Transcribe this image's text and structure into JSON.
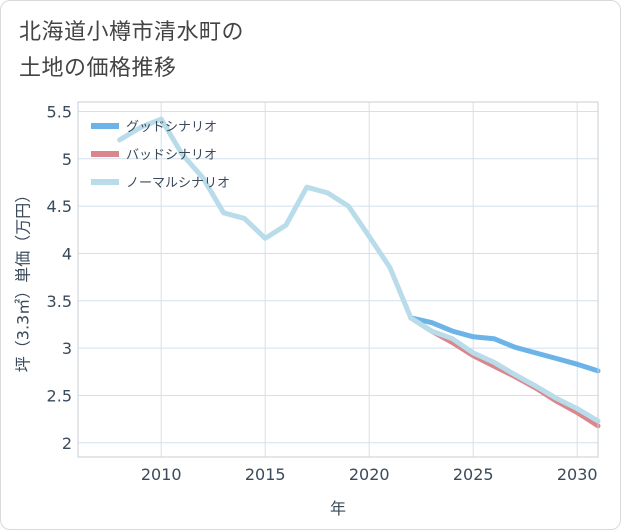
{
  "title": "北海道小樽市清水町の\n土地の価格推移",
  "chart_data": {
    "type": "line",
    "xlabel": "年",
    "ylabel": "坪（3.3㎡）単価（万円）",
    "xlim": [
      2006,
      2031
    ],
    "ylim": [
      1.85,
      5.6
    ],
    "xticks": [
      2010,
      2015,
      2020,
      2025,
      2030
    ],
    "xtick_labels": [
      "2010",
      "2015",
      "2020",
      "2025",
      "2030"
    ],
    "yticks": [
      2,
      2.5,
      3,
      3.5,
      4,
      4.5,
      5,
      5.5
    ],
    "ytick_labels": [
      "2",
      "2.5",
      "3",
      "3.5",
      "4",
      "4.5",
      "5",
      "5.5"
    ],
    "grid": true,
    "legend_position": "top-left",
    "series": [
      {
        "name": "グッドシナリオ",
        "color": "#6cb3e8",
        "x": [
          2022,
          2023,
          2024,
          2025,
          2026,
          2027,
          2028,
          2029,
          2030,
          2031
        ],
        "y": [
          3.32,
          3.27,
          3.18,
          3.12,
          3.1,
          3.01,
          2.95,
          2.89,
          2.83,
          2.76
        ]
      },
      {
        "name": "バッドシナリオ",
        "color": "#d9868c",
        "x": [
          2022,
          2023,
          2024,
          2025,
          2026,
          2027,
          2028,
          2029,
          2030,
          2031
        ],
        "y": [
          3.32,
          3.18,
          3.06,
          2.92,
          2.81,
          2.7,
          2.58,
          2.44,
          2.32,
          2.18
        ]
      },
      {
        "name": "ノーマルシナリオ",
        "color": "#b9dcea",
        "x": [
          2008,
          2009,
          2010,
          2011,
          2012,
          2013,
          2014,
          2015,
          2016,
          2017,
          2018,
          2019,
          2020,
          2021,
          2022,
          2023,
          2024,
          2025,
          2026,
          2027,
          2028,
          2029,
          2030,
          2031
        ],
        "y": [
          5.2,
          5.33,
          5.42,
          5.05,
          4.8,
          4.43,
          4.37,
          4.16,
          4.3,
          4.7,
          4.64,
          4.5,
          4.18,
          3.85,
          3.32,
          3.18,
          3.1,
          2.95,
          2.85,
          2.72,
          2.6,
          2.47,
          2.36,
          2.23
        ]
      }
    ]
  }
}
